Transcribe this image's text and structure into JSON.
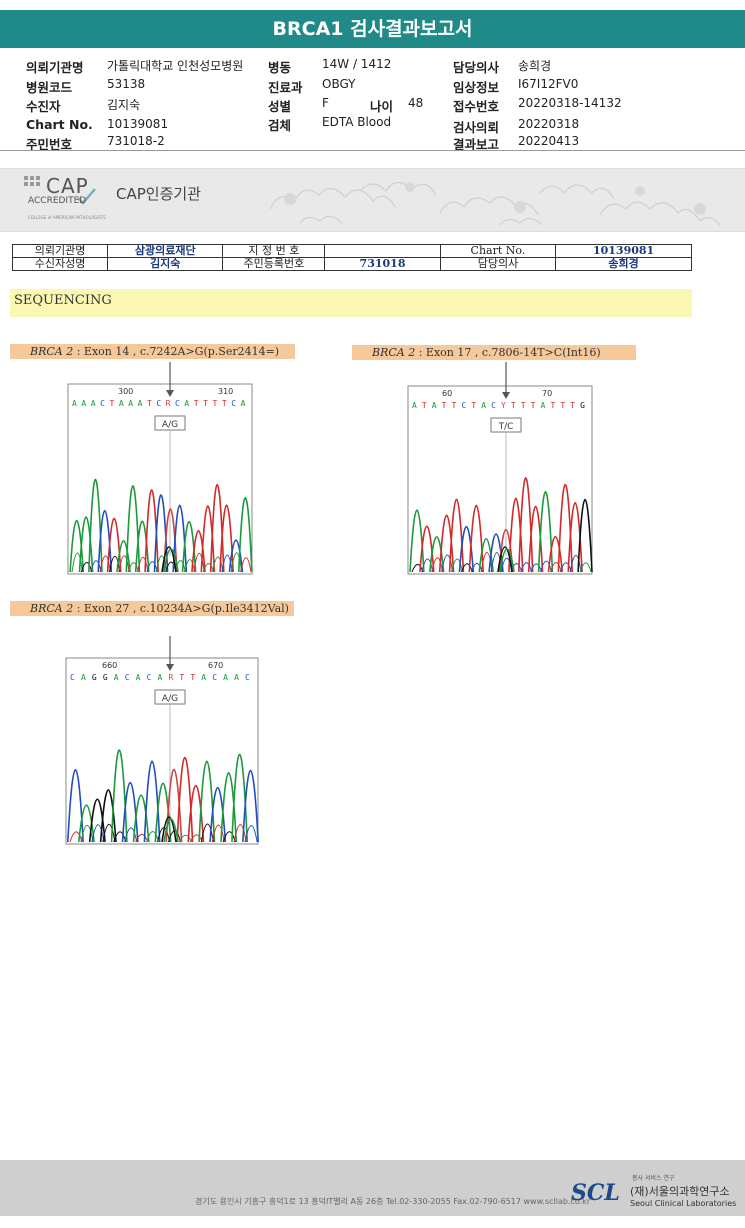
{
  "report": {
    "title": "BRCA1 검사결과보고서"
  },
  "header_info": [
    {
      "label": "의뢰기관명",
      "value": "가톨릭대학교 인천성모병원"
    },
    {
      "label": "병원코드",
      "value": "53138"
    },
    {
      "label": "수진자",
      "value": "김지숙"
    },
    {
      "label": "Chart No.",
      "value": "10139081"
    },
    {
      "label": "주민번호",
      "value": "731018-2"
    },
    {
      "label": "병동",
      "value": "14W / 1412"
    },
    {
      "label": "진료과",
      "value": "OBGY"
    },
    {
      "label": "성별",
      "value": "F"
    },
    {
      "label": "나이",
      "value": "48"
    },
    {
      "label": "검체",
      "value": "EDTA Blood"
    },
    {
      "label": "담당의사",
      "value": "송희경"
    },
    {
      "label": "임상정보",
      "value": "I67I12FV0"
    },
    {
      "label": "접수번호",
      "value": "20220318-14132"
    },
    {
      "label": "검사의뢰",
      "value": "20220318"
    },
    {
      "label": "결과보고",
      "value": "20220413"
    }
  ],
  "cap": {
    "logo_text": "CAP",
    "logo_sub": "ACCREDITED",
    "logo_tiny": "COLLEGE of AMERICAN PATHOLOGISTS",
    "label": "CAP인증기관"
  },
  "patient_table": {
    "row1": [
      "의뢰기관명",
      "삼광의료재단",
      "지 정 번 호",
      "",
      "Chart No.",
      "10139081"
    ],
    "row2": [
      "수신자성명",
      "김지숙",
      "주민등록번호",
      "731018",
      "담당의사",
      "송희경"
    ]
  },
  "section_title": "SEQUENCING",
  "variants": [
    {
      "gene": "BRCA 2",
      "desc": " : Exon 14 , c.7242A>G(p.Ser2414=)",
      "pos_left": "300",
      "pos_right": "310",
      "sequence": "AAACTAAATCRCATTTTCA",
      "call": "A/G"
    },
    {
      "gene": "BRCA 2",
      "desc": " : Exon 17 , c.7806-14T>C(Int16)",
      "pos_left": "60",
      "pos_right": "70",
      "sequence": "ATATTCTACYTTTATTTG",
      "call": "T/C"
    },
    {
      "gene": "BRCA 2",
      "desc": " : Exon 27 , c.10234A>G(p.Ile3412Val)",
      "pos_left": "660",
      "pos_right": "670",
      "sequence": "CAGGACACARTTACAAC",
      "call": "A/G"
    }
  ],
  "footer": {
    "address": "경기도 용인시 기흥구 흥덕1로 13 흥덕IT밸리 A동 26층  Tel.02-330-2055  Fax.02-790-6517  www.scllab.co.kr",
    "logo": "SCL",
    "org_kr": "(재)서울의과학연구소",
    "org_en": "Seoul Clinical Laboratories",
    "tagline": "봉사 서비스 연구"
  },
  "colors": {
    "header_bar": "#1f8a87",
    "label_bg": "#f6c99a",
    "section_bg": "#faf7b3",
    "A": "#1a9a3a",
    "C": "#1f4fbf",
    "G": "#111111",
    "T": "#d22a2a"
  }
}
